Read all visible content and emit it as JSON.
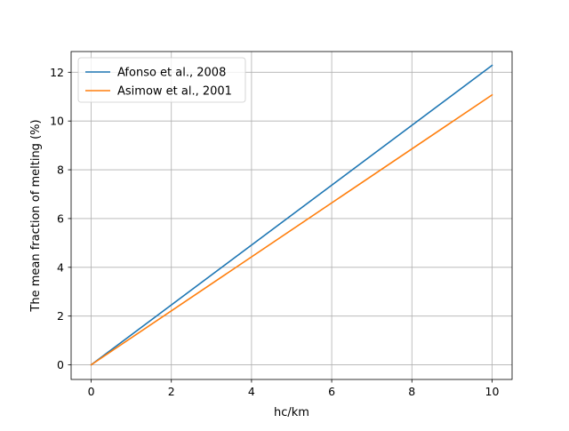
{
  "chart_data": {
    "type": "line",
    "title": "",
    "xlabel": "hc/km",
    "ylabel": "The mean fraction of melting (%)",
    "xlim": [
      -0.5,
      10.5
    ],
    "ylim": [
      -0.6,
      12.85
    ],
    "xticks": [
      0,
      2,
      4,
      6,
      8,
      10
    ],
    "yticks": [
      0,
      2,
      4,
      6,
      8,
      10,
      12
    ],
    "grid": true,
    "legend": "upper-left",
    "series": [
      {
        "name": "Afonso et al., 2008",
        "color": "#1f77b4",
        "x": [
          0,
          10
        ],
        "y": [
          0,
          12.28
        ]
      },
      {
        "name": "Asimow et al., 2001",
        "color": "#ff7f0e",
        "x": [
          0,
          10
        ],
        "y": [
          0,
          11.07
        ]
      }
    ]
  }
}
